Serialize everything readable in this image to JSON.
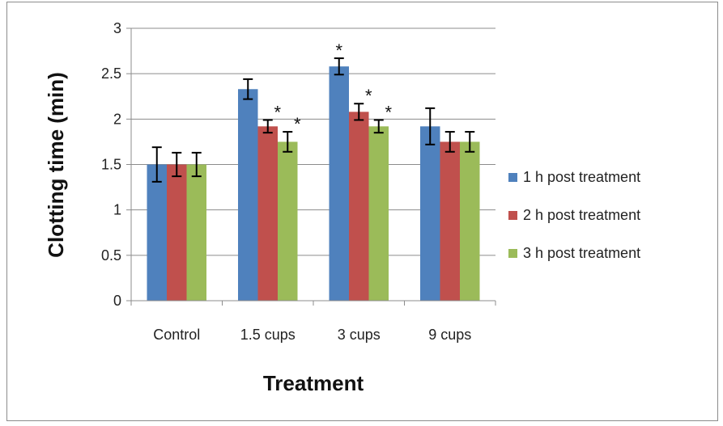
{
  "chart_data": {
    "type": "bar",
    "xlabel": "Treatment",
    "ylabel": "Clotting time (min)",
    "ylim": [
      0,
      3
    ],
    "yticks": [
      "0",
      "0.5",
      "1",
      "1.5",
      "2",
      "2.5",
      "3"
    ],
    "grid": true,
    "legend_position": "right",
    "categories": [
      "Control",
      "1.5 cups",
      "3 cups",
      "9 cups"
    ],
    "series": [
      {
        "name": "1 h post treatment",
        "color": "#4f81bd",
        "values": [
          1.5,
          2.33,
          2.58,
          1.92
        ],
        "errors": [
          0.19,
          0.11,
          0.09,
          0.2
        ],
        "significance": [
          "",
          "",
          "*",
          ""
        ]
      },
      {
        "name": "2 h post treatment",
        "color": "#c0504d",
        "values": [
          1.5,
          1.92,
          2.08,
          1.75
        ],
        "errors": [
          0.13,
          0.07,
          0.09,
          0.11
        ],
        "significance": [
          "",
          "*",
          "*",
          ""
        ]
      },
      {
        "name": "3 h post treatment",
        "color": "#9bbb59",
        "values": [
          1.5,
          1.75,
          1.92,
          1.75
        ],
        "errors": [
          0.13,
          0.11,
          0.07,
          0.11
        ],
        "significance": [
          "",
          "*",
          "*",
          ""
        ]
      }
    ]
  }
}
